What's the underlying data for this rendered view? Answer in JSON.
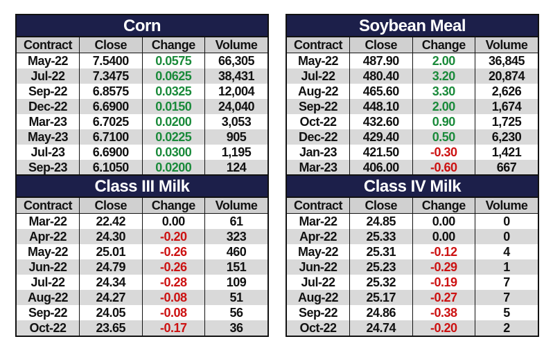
{
  "columns": [
    "Contract",
    "Close",
    "Change",
    "Volume"
  ],
  "colors": {
    "title_bg": "#1c1f4a",
    "positive": "#1a8a3a",
    "negative": "#cc1111"
  },
  "tables": [
    {
      "title": "Corn",
      "rows": [
        [
          "May-22",
          "7.5400",
          "0.0575",
          "66,305"
        ],
        [
          "Jul-22",
          "7.3475",
          "0.0625",
          "38,431"
        ],
        [
          "Sep-22",
          "6.8575",
          "0.0325",
          "12,004"
        ],
        [
          "Dec-22",
          "6.6900",
          "0.0150",
          "24,040"
        ],
        [
          "Mar-23",
          "6.7025",
          "0.0200",
          "3,053"
        ],
        [
          "May-23",
          "6.7100",
          "0.0225",
          "905"
        ],
        [
          "Jul-23",
          "6.6900",
          "0.0300",
          "1,195"
        ],
        [
          "Sep-23",
          "6.1050",
          "0.0200",
          "124"
        ]
      ]
    },
    {
      "title": "Soybean Meal",
      "rows": [
        [
          "May-22",
          "487.90",
          "2.00",
          "36,845"
        ],
        [
          "Jul-22",
          "480.40",
          "3.20",
          "20,874"
        ],
        [
          "Aug-22",
          "465.60",
          "3.30",
          "2,626"
        ],
        [
          "Sep-22",
          "448.10",
          "2.00",
          "1,674"
        ],
        [
          "Oct-22",
          "432.60",
          "0.90",
          "1,725"
        ],
        [
          "Dec-22",
          "429.40",
          "0.50",
          "6,230"
        ],
        [
          "Jan-23",
          "421.50",
          "-0.30",
          "1,421"
        ],
        [
          "Mar-23",
          "406.00",
          "-0.60",
          "667"
        ]
      ]
    },
    {
      "title": "Class III Milk",
      "rows": [
        [
          "Mar-22",
          "22.42",
          "0.00",
          "61"
        ],
        [
          "Apr-22",
          "24.30",
          "-0.20",
          "323"
        ],
        [
          "May-22",
          "25.01",
          "-0.26",
          "460"
        ],
        [
          "Jun-22",
          "24.79",
          "-0.26",
          "151"
        ],
        [
          "Jul-22",
          "24.34",
          "-0.28",
          "109"
        ],
        [
          "Aug-22",
          "24.27",
          "-0.08",
          "51"
        ],
        [
          "Sep-22",
          "24.05",
          "-0.08",
          "56"
        ],
        [
          "Oct-22",
          "23.65",
          "-0.17",
          "36"
        ]
      ]
    },
    {
      "title": "Class IV Milk",
      "rows": [
        [
          "Mar-22",
          "24.85",
          "0.00",
          "0"
        ],
        [
          "Apr-22",
          "25.33",
          "0.00",
          "0"
        ],
        [
          "May-22",
          "25.31",
          "-0.12",
          "4"
        ],
        [
          "Jun-22",
          "25.23",
          "-0.29",
          "1"
        ],
        [
          "Jul-22",
          "25.32",
          "-0.19",
          "7"
        ],
        [
          "Aug-22",
          "25.17",
          "-0.27",
          "7"
        ],
        [
          "Sep-22",
          "24.86",
          "-0.38",
          "5"
        ],
        [
          "Oct-22",
          "24.74",
          "-0.20",
          "2"
        ]
      ]
    }
  ]
}
